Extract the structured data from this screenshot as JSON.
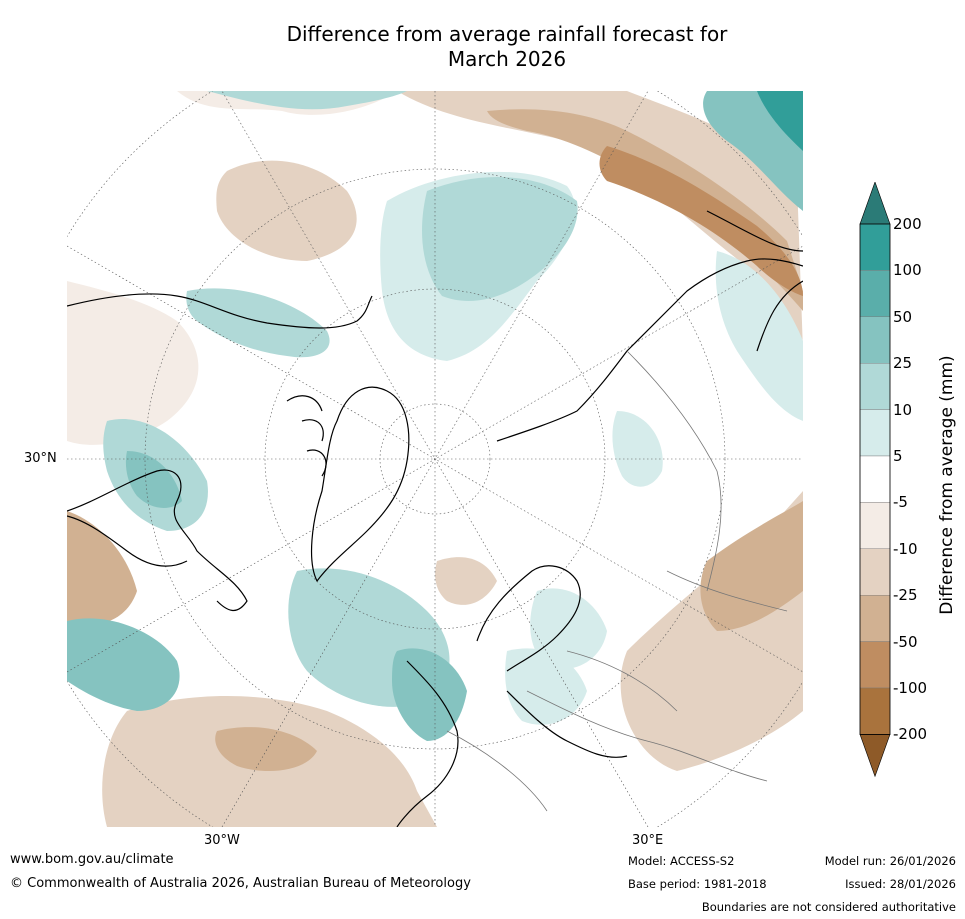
{
  "title": "Difference from average rainfall forecast for\nMarch 2026",
  "map": {
    "projection": "north-polar-stereographic",
    "lat_labels": [
      "30°N"
    ],
    "lon_labels": [
      "30°W",
      "30°E"
    ]
  },
  "legend": {
    "title": "Difference from average (mm)",
    "tick_labels": [
      "200",
      "100",
      "50",
      "25",
      "10",
      "5",
      "-5",
      "-10",
      "-25",
      "-50",
      "-100",
      "-200"
    ],
    "bands": [
      {
        "range": "> 200",
        "color": "#2b7b77"
      },
      {
        "range": "100 to 200",
        "color": "#319e99"
      },
      {
        "range": "50 to 100",
        "color": "#5aaeaa"
      },
      {
        "range": "25 to 50",
        "color": "#85c3c0"
      },
      {
        "range": "10 to 25",
        "color": "#b0d9d7"
      },
      {
        "range": "5 to 10",
        "color": "#d6eceb"
      },
      {
        "range": "-5 to 5",
        "color": "#ffffff"
      },
      {
        "range": "-10 to -5",
        "color": "#f4ece6"
      },
      {
        "range": "-25 to -10",
        "color": "#e4d2c2"
      },
      {
        "range": "-50 to -25",
        "color": "#d1b192"
      },
      {
        "range": "-100 to -50",
        "color": "#bf8d61"
      },
      {
        "range": "-200 to -100",
        "color": "#a9733d"
      },
      {
        "range": "< -200",
        "color": "#8e5a28"
      }
    ]
  },
  "footer": {
    "website": "www.bom.gov.au/climate",
    "copyright": "© Commonwealth of Australia 2026, Australian Bureau of Meteorology",
    "model": "Model: ACCESS-S2",
    "base_period": "Base period: 1981-2018",
    "model_run": "Model run: 26/01/2026",
    "issued": "Issued: 28/01/2026",
    "disclaimer": "Boundaries are not considered authoritative"
  }
}
